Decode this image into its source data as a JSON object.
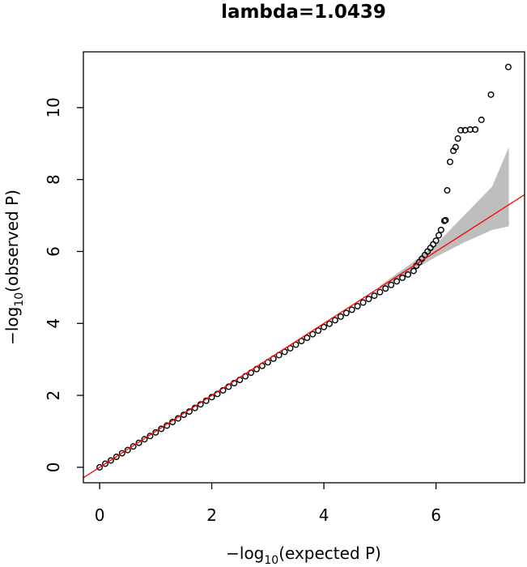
{
  "chart_data": {
    "type": "scatter",
    "title": "lambda=1.0439",
    "xlabel": {
      "prefix": "−log",
      "sub": "10",
      "suffix": "(expected P)"
    },
    "ylabel": {
      "prefix": "−log",
      "sub": "10",
      "suffix": "(observed P)"
    },
    "xlim": [
      -0.29,
      7.58
    ],
    "ylim": [
      -0.43,
      11.55
    ],
    "xticks": [
      0,
      2,
      4,
      6
    ],
    "yticks": [
      0,
      2,
      4,
      6,
      8,
      10
    ],
    "series": [
      {
        "color": "#000000",
        "x": [
          0,
          0.1,
          0.2,
          0.3,
          0.4,
          0.5,
          0.6,
          0.7,
          0.8,
          0.9,
          1.0,
          1.1,
          1.2,
          1.3,
          1.4,
          1.5,
          1.6,
          1.7,
          1.8,
          1.9,
          2.0,
          2.1,
          2.2,
          2.3,
          2.4,
          2.5,
          2.6,
          2.7,
          2.8,
          2.9,
          3.0,
          3.1,
          3.2,
          3.3,
          3.4,
          3.5,
          3.6,
          3.7,
          3.8,
          3.9,
          4.0,
          4.1,
          4.2,
          4.3,
          4.4,
          4.5,
          4.6,
          4.7,
          4.8,
          4.9,
          5.0,
          5.1,
          5.2,
          5.3,
          5.4,
          5.5,
          5.6,
          5.65,
          5.7,
          5.75,
          5.8,
          5.85,
          5.9,
          5.95,
          6.0,
          6.05,
          6.09,
          6.15,
          6.17,
          6.2,
          6.25,
          6.31,
          6.35,
          6.39,
          6.44,
          6.52,
          6.61,
          6.7,
          6.81,
          6.98,
          7.29
        ],
        "values": [
          0,
          0.1,
          0.19,
          0.29,
          0.39,
          0.48,
          0.58,
          0.68,
          0.78,
          0.87,
          0.97,
          1.07,
          1.16,
          1.26,
          1.36,
          1.46,
          1.55,
          1.65,
          1.75,
          1.85,
          1.95,
          2.04,
          2.14,
          2.24,
          2.34,
          2.43,
          2.53,
          2.63,
          2.73,
          2.82,
          2.92,
          3.02,
          3.12,
          3.21,
          3.31,
          3.41,
          3.51,
          3.6,
          3.7,
          3.8,
          3.9,
          3.99,
          4.09,
          4.19,
          4.29,
          4.38,
          4.48,
          4.58,
          4.68,
          4.77,
          4.87,
          4.97,
          5.07,
          5.17,
          5.27,
          5.36,
          5.46,
          5.6,
          5.7,
          5.8,
          5.9,
          6.0,
          6.1,
          6.2,
          6.3,
          6.45,
          6.6,
          6.85,
          6.87,
          7.7,
          8.49,
          8.8,
          8.9,
          9.14,
          9.37,
          9.37,
          9.39,
          9.39,
          9.66,
          10.36,
          11.13
        ]
      }
    ],
    "band": {
      "color": "#bebebe",
      "x": [
        5.0,
        5.5,
        6.0,
        6.5,
        7.0,
        7.3
      ],
      "upper": [
        5.05,
        5.6,
        6.2,
        7.0,
        7.8,
        8.9
      ],
      "lower": [
        4.95,
        5.4,
        5.85,
        6.25,
        6.6,
        6.7
      ]
    },
    "reference_line": {
      "color": "#ff0000"
    }
  }
}
